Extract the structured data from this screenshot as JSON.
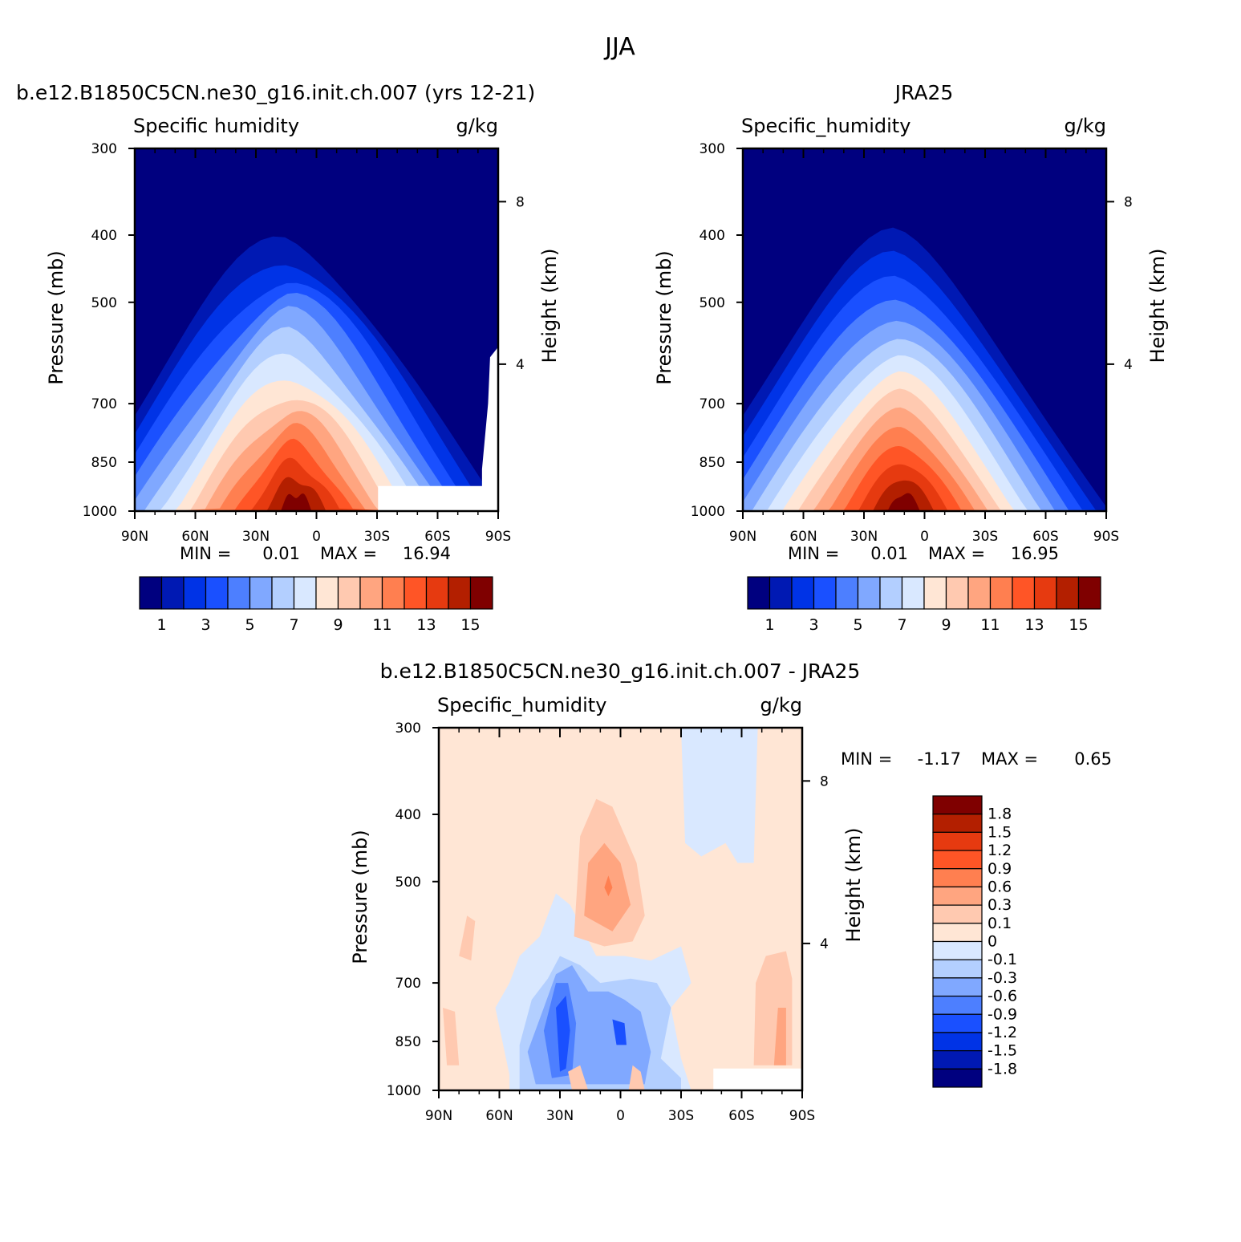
{
  "figure": {
    "main_title": "JJA",
    "panel_a_title": "b.e12.B1850C5CN.ne30_g16.init.ch.007 (yrs 12-21)",
    "panel_b_title": "JRA25",
    "panel_c_title": "b.e12.B1850C5CN.ne30_g16.init.ch.007 - JRA25"
  },
  "colors": {
    "main_scale": [
      "#00007f",
      "#0019b3",
      "#0033e6",
      "#1a50ff",
      "#4d7fff",
      "#80a8ff",
      "#b3cfff",
      "#d9e8ff",
      "#ffe6d5",
      "#ffc9b0",
      "#ffa580",
      "#ff7f50",
      "#ff5526",
      "#e63a10",
      "#b31f00",
      "#7f0000"
    ],
    "diff_scale": [
      "#00007f",
      "#0019b3",
      "#0033e6",
      "#1a50ff",
      "#4d7fff",
      "#80a8ff",
      "#b3cfff",
      "#d9e8ff",
      "#ffe6d5",
      "#ffc9b0",
      "#ffa580",
      "#ff7f50",
      "#ff5526",
      "#e63a10",
      "#b31f00",
      "#7f0000"
    ]
  },
  "chart_data": [
    {
      "type": "contour",
      "id": "model",
      "title": "b.e12.B1850C5CN.ne30_g16.init.ch.007 (yrs 12-21)",
      "field_label": "Specific humidity",
      "units": "g/kg",
      "xlabel": "",
      "ylabel": "Pressure (mb)",
      "ylabel_right": "Height (km)",
      "x_ticks": [
        "90N",
        "60N",
        "30N",
        "0",
        "30S",
        "60S",
        "90S"
      ],
      "y_ticks": [
        300,
        400,
        500,
        700,
        850,
        1000
      ],
      "y_right_ticks": [
        8,
        4
      ],
      "xlim": [
        90,
        -90
      ],
      "ylim": [
        1000,
        300
      ],
      "min_label": "MIN =",
      "min_value": "0.01",
      "max_label": "MAX =",
      "max_value": "16.94",
      "colorbar_labels": [
        "1",
        "3",
        "5",
        "7",
        "9",
        "11",
        "13",
        "15"
      ],
      "levels": [
        1,
        2,
        3,
        4,
        5,
        6,
        7,
        8,
        9,
        10,
        11,
        12,
        13,
        14,
        15
      ],
      "peak_lat": 10,
      "peak_value": 16.94
    },
    {
      "type": "contour",
      "id": "obs",
      "title": "JRA25",
      "field_label": "Specific_humidity",
      "units": "g/kg",
      "xlabel": "",
      "ylabel": "Pressure (mb)",
      "ylabel_right": "Height (km)",
      "x_ticks": [
        "90N",
        "60N",
        "30N",
        "0",
        "30S",
        "60S",
        "90S"
      ],
      "y_ticks": [
        300,
        400,
        500,
        700,
        850,
        1000
      ],
      "y_right_ticks": [
        8,
        4
      ],
      "xlim": [
        90,
        -90
      ],
      "ylim": [
        1000,
        300
      ],
      "min_label": "MIN =",
      "min_value": "0.01",
      "max_label": "MAX =",
      "max_value": "16.95",
      "colorbar_labels": [
        "1",
        "3",
        "5",
        "7",
        "9",
        "11",
        "13",
        "15"
      ],
      "levels": [
        1,
        2,
        3,
        4,
        5,
        6,
        7,
        8,
        9,
        10,
        11,
        12,
        13,
        14,
        15
      ],
      "peak_lat": 10,
      "peak_value": 16.95
    },
    {
      "type": "contour",
      "id": "diff",
      "title": "b.e12.B1850C5CN.ne30_g16.init.ch.007 - JRA25",
      "field_label": "Specific_humidity",
      "units": "g/kg",
      "xlabel": "",
      "ylabel": "Pressure (mb)",
      "ylabel_right": "Height (km)",
      "x_ticks": [
        "90N",
        "60N",
        "30N",
        "0",
        "30S",
        "60S",
        "90S"
      ],
      "y_ticks": [
        300,
        400,
        500,
        700,
        850,
        1000
      ],
      "y_right_ticks": [
        8,
        4
      ],
      "xlim": [
        90,
        -90
      ],
      "ylim": [
        1000,
        300
      ],
      "min_label": "MIN =",
      "min_value": "-1.17",
      "max_label": "MAX =",
      "max_value": "0.65",
      "colorbar_labels": [
        "1.8",
        "1.5",
        "1.2",
        "0.9",
        "0.6",
        "0.3",
        "0.1",
        "0",
        "-0.1",
        "-0.3",
        "-0.6",
        "-0.9",
        "-1.2",
        "-1.5",
        "-1.8"
      ],
      "levels": [
        -1.8,
        -1.5,
        -1.2,
        -0.9,
        -0.6,
        -0.3,
        -0.1,
        0,
        0.1,
        0.3,
        0.6,
        0.9,
        1.2,
        1.5,
        1.8
      ]
    }
  ]
}
